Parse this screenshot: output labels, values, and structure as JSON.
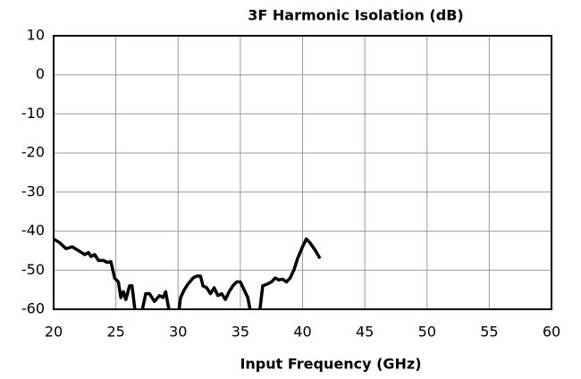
{
  "chart_data": {
    "type": "line",
    "title": "3F Harmonic Isolation (dB)",
    "x_label": "Input Frequency (GHz)",
    "xlim": [
      20,
      60
    ],
    "xticks": [
      20,
      25,
      30,
      35,
      40,
      45,
      50,
      55,
      60
    ],
    "ylim": [
      -60,
      10
    ],
    "yticks": [
      10,
      0,
      -10,
      -20,
      -30,
      -40,
      -50,
      -60
    ],
    "grid": true,
    "series": [
      {
        "name": "3F Harmonic Isolation",
        "color": "#000000",
        "x": [
          20,
          20.5,
          21,
          21.5,
          22,
          22.5,
          22.8,
          23,
          23.3,
          23.6,
          24,
          24.3,
          24.6,
          24.9,
          25.2,
          25.4,
          25.6,
          25.8,
          26.1,
          26.3,
          26.6,
          27,
          27.4,
          27.7,
          28.1,
          28.5,
          28.8,
          29,
          29.2,
          29.4,
          30,
          30.2,
          30.5,
          30.8,
          31.2,
          31.5,
          31.8,
          32,
          32.3,
          32.6,
          32.9,
          33.2,
          33.5,
          33.8,
          34.1,
          34.4,
          34.7,
          35,
          35.3,
          35.6,
          35.9,
          36.5,
          36.8,
          37.2,
          37.5,
          37.8,
          38.1,
          38.4,
          38.7,
          39,
          39.3,
          39.6,
          40,
          40.3,
          40.6,
          41,
          41.4
        ],
        "values": [
          -42,
          -43,
          -44.5,
          -44,
          -45,
          -46,
          -45.5,
          -46.5,
          -46,
          -47.5,
          -47.5,
          -48,
          -47.8,
          -52,
          -53,
          -57,
          -55.5,
          -57.5,
          -54,
          -54,
          -62,
          -62,
          -56,
          -56,
          -58,
          -56.5,
          -57,
          -55.5,
          -59,
          -62,
          -62,
          -57,
          -55,
          -53.5,
          -52,
          -51.5,
          -51.5,
          -54,
          -54.5,
          -56,
          -54.5,
          -56.5,
          -56,
          -57.5,
          -55.5,
          -54,
          -53,
          -53,
          -55,
          -57,
          -62,
          -62,
          -54,
          -53.5,
          -53,
          -52,
          -52.5,
          -52.3,
          -53,
          -52,
          -50,
          -47,
          -44,
          -42,
          -43,
          -44.8,
          -47
        ]
      }
    ]
  }
}
